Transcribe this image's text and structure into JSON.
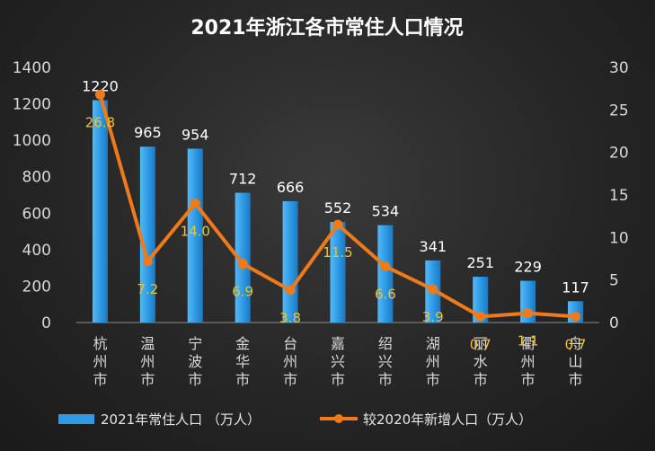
{
  "chart_data": {
    "type": "bar",
    "title": "2021年浙江各市常住人口情况",
    "categories": [
      "杭州市",
      "温州市",
      "宁波市",
      "金华市",
      "台州市",
      "嘉兴市",
      "绍兴市",
      "湖州市",
      "丽水市",
      "衢州市",
      "舟山市"
    ],
    "series": [
      {
        "name": "2021年常住人口 （万人）",
        "type": "bar",
        "axis": "left",
        "color": "#2e9be6",
        "values": [
          1220,
          965,
          954,
          712,
          666,
          552,
          534,
          341,
          251,
          229,
          117
        ]
      },
      {
        "name": "较2020年新增人口（万人）",
        "type": "line",
        "axis": "right",
        "color": "#f07a1a",
        "label_color": "#f2c12e",
        "values": [
          26.8,
          7.2,
          14.0,
          6.9,
          3.8,
          11.5,
          6.6,
          3.9,
          0.7,
          1.1,
          0.7
        ]
      }
    ],
    "ylim": [
      0,
      1400
    ],
    "yticks": [
      0,
      200,
      400,
      600,
      800,
      1000,
      1200,
      1400
    ],
    "y2lim": [
      0,
      30
    ],
    "y2ticks": [
      0,
      5,
      10,
      15,
      20,
      25,
      30
    ],
    "xlabel": "",
    "ylabel": "",
    "grid": false,
    "legend_position": "bottom"
  }
}
